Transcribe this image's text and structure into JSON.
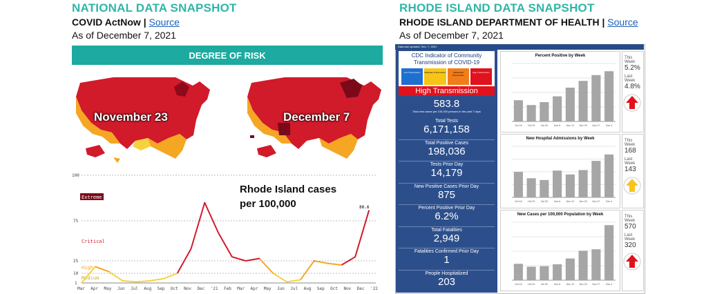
{
  "national": {
    "title": "NATIONAL DATA SNAPSHOT",
    "source_org": "COVID ActNow",
    "separator": " | ",
    "source_link": "Source",
    "as_of": "As of December 7, 2021",
    "risk_header": "DEGREE OF RISK",
    "map_left_label": "November 23",
    "map_right_label": "December 7",
    "colors": {
      "extreme": "#7a0a1a",
      "critical": "#d11a2a",
      "high": "#f5a623",
      "medium": "#f7d23e",
      "low": "#1daa3c"
    }
  },
  "line_chart_text": {
    "annotation": "Rhode Island cases per 100,000",
    "y_ticks": [
      "100",
      "75",
      "25",
      "10",
      "1"
    ],
    "levels": [
      "Extreme",
      "Critical",
      "High",
      "Medium"
    ],
    "end_value": "80.6",
    "x_ticks": [
      "Mar",
      "Apr",
      "May",
      "Jun",
      "Jul",
      "Aug",
      "Sep",
      "Oct",
      "Nov",
      "Dec",
      "'21",
      "Feb",
      "Mar",
      "Apr",
      "May",
      "Jun",
      "Jul",
      "Aug",
      "Sep",
      "Oct",
      "Nov",
      "Dec",
      "'22"
    ]
  },
  "chart_data": [
    {
      "type": "line",
      "title": "",
      "xlabel": "",
      "ylabel": "",
      "ylim": [
        0,
        100
      ],
      "x": [
        "Mar 2020",
        "Apr",
        "May",
        "Jun",
        "Jul",
        "Aug",
        "Sep",
        "Oct",
        "Nov",
        "Dec",
        "Jan 2021",
        "Feb",
        "Mar",
        "Apr",
        "May",
        "Jun",
        "Jul",
        "Aug",
        "Sep",
        "Oct",
        "Nov",
        "Dec 7"
      ],
      "values": [
        1,
        18,
        12,
        3,
        2,
        3,
        5,
        10,
        40,
        85,
        60,
        30,
        25,
        28,
        10,
        2,
        4,
        25,
        22,
        20,
        30,
        80.6
      ]
    },
    {
      "type": "bar",
      "title": "Percent Positive by Week",
      "categories": [
        "Oct 16",
        "Oct 23",
        "Oct 30",
        "Nov 6",
        "Nov 13",
        "Nov 20",
        "Nov 27",
        "Dec 4"
      ],
      "values": [
        2.2,
        1.7,
        2.0,
        2.6,
        3.5,
        4.2,
        4.8,
        5.2
      ],
      "ylim": [
        0,
        6
      ]
    },
    {
      "type": "bar",
      "title": "New Hospital Admissions by Week",
      "categories": [
        "Oct 16",
        "Oct 23",
        "Oct 30",
        "Nov 6",
        "Nov 13",
        "Nov 20",
        "Nov 27",
        "Dec 4"
      ],
      "values": [
        100,
        75,
        68,
        105,
        90,
        107,
        143,
        168
      ],
      "ylim": [
        0,
        200
      ]
    },
    {
      "type": "bar",
      "title": "New Cases per 100,000 Population by Week",
      "categories": [
        "Oct 16",
        "Oct 23",
        "Oct 30",
        "Nov 6",
        "Nov 13",
        "Nov 20",
        "Nov 27",
        "Dec 4"
      ],
      "values": [
        170,
        140,
        145,
        165,
        225,
        305,
        320,
        570
      ],
      "ylim": [
        0,
        600
      ]
    }
  ],
  "ri": {
    "title": "RHODE ISLAND DATA SNAPSHOT",
    "source_org": "RHODE ISLAND DEPARTMENT OF HEALTH",
    "separator": " | ",
    "source_link": "Source",
    "as_of": "As of December 7, 2021",
    "strip_text": "Data last updated: Dec. 7, 2021",
    "cdc_title": "CDC Indicator of Community Transmission of COVID-19",
    "legend": [
      "Low Transmission",
      "Moderate Transmission",
      "Substantial Transmission",
      "High Transmission"
    ],
    "legend_colors": [
      "#1f6fd1",
      "#f7c518",
      "#f07d1a",
      "#e0121d"
    ],
    "transmission": "High Transmission",
    "rate_value": "583.8",
    "rate_label": "Total new cases per 100,000 persons in the past 7 days",
    "stats": [
      {
        "label": "Total Tests",
        "value": "6,171,158"
      },
      {
        "label": "Total Positive Cases",
        "value": "198,036"
      },
      {
        "label": "Tests Prior Day",
        "value": "14,179"
      },
      {
        "label": "New Positive Cases Prior Day",
        "value": "875"
      },
      {
        "label": "Percent Positive Prior Day",
        "value": "6.2%"
      },
      {
        "label": "Total Fatalities",
        "value": "2,949"
      },
      {
        "label": "Fatalities Confirmed Prior Day",
        "value": "1"
      },
      {
        "label": "People Hospitalized",
        "value": "203"
      }
    ],
    "side": [
      {
        "this_label": "This Week",
        "this_value": "5.2%",
        "last_label": "Last Week",
        "last_value": "4.8%",
        "arrow_color": "#e0121d"
      },
      {
        "this_label": "This Week",
        "this_value": "168",
        "last_label": "Last Week",
        "last_value": "143",
        "arrow_color": "#f7c518"
      },
      {
        "this_label": "This Week",
        "this_value": "570",
        "last_label": "Last Week",
        "last_value": "320",
        "arrow_color": "#e0121d"
      }
    ]
  }
}
